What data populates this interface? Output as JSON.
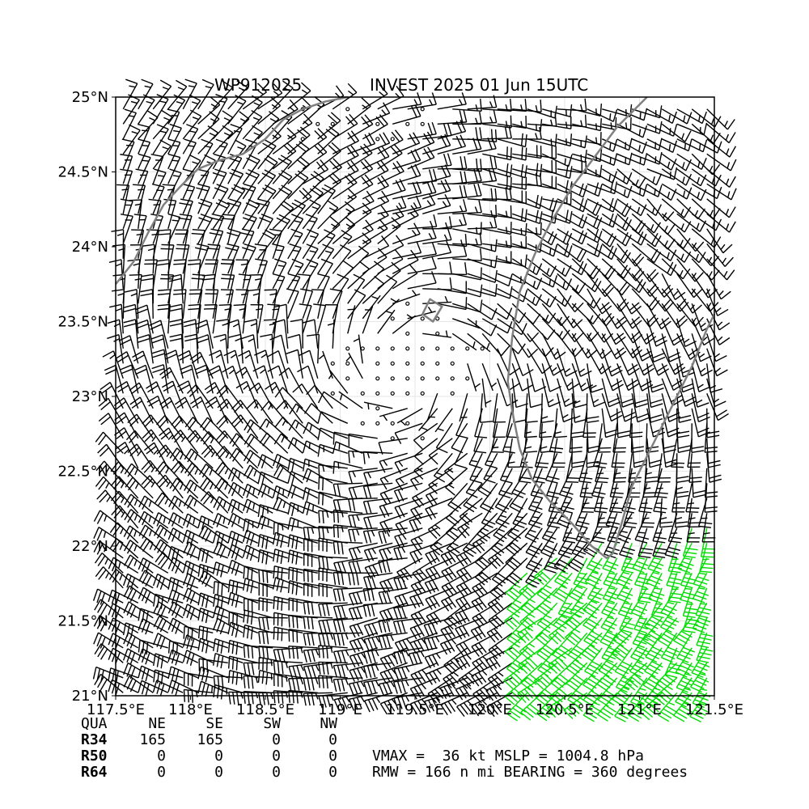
{
  "title_left": "WP912025",
  "title_right": "INVEST 2025 01 Jun 15UTC",
  "colors": {
    "barb": "#000000",
    "barb_strong": "#00dd00",
    "coastline": "#808080",
    "grid": "#e6e6e6"
  },
  "chart_data": {
    "type": "wind barb map",
    "xlim": [
      117.5,
      121.5
    ],
    "ylim": [
      21.0,
      25.0
    ],
    "x_ticks": [
      "117.5°E",
      "118°E",
      "118.5°E",
      "119°E",
      "119.5°E",
      "120°E",
      "120.5°E",
      "121°E",
      "121.5°E"
    ],
    "y_ticks": [
      "25°N",
      "24.5°N",
      "24°N",
      "23.5°N",
      "23°N",
      "22.5°N",
      "22°N",
      "21.5°N",
      "21°N"
    ],
    "grid": true,
    "circulation_center": [
      119.45,
      23.15
    ],
    "strong_wind_region": "southeast corner (green barbs)"
  },
  "radii_table": {
    "headers": [
      "QUA",
      "NE",
      "SE",
      "SW",
      "NW"
    ],
    "rows": [
      [
        "R34",
        "165",
        "165",
        "0",
        "0"
      ],
      [
        "R50",
        "0",
        "0",
        "0",
        "0"
      ],
      [
        "R64",
        "0",
        "0",
        "0",
        "0"
      ]
    ]
  },
  "stats": {
    "line1": "VMAX =  36 kt MSLP = 1004.8 hPa",
    "line2": "RMW = 166 n mi BEARING = 360 degrees"
  }
}
